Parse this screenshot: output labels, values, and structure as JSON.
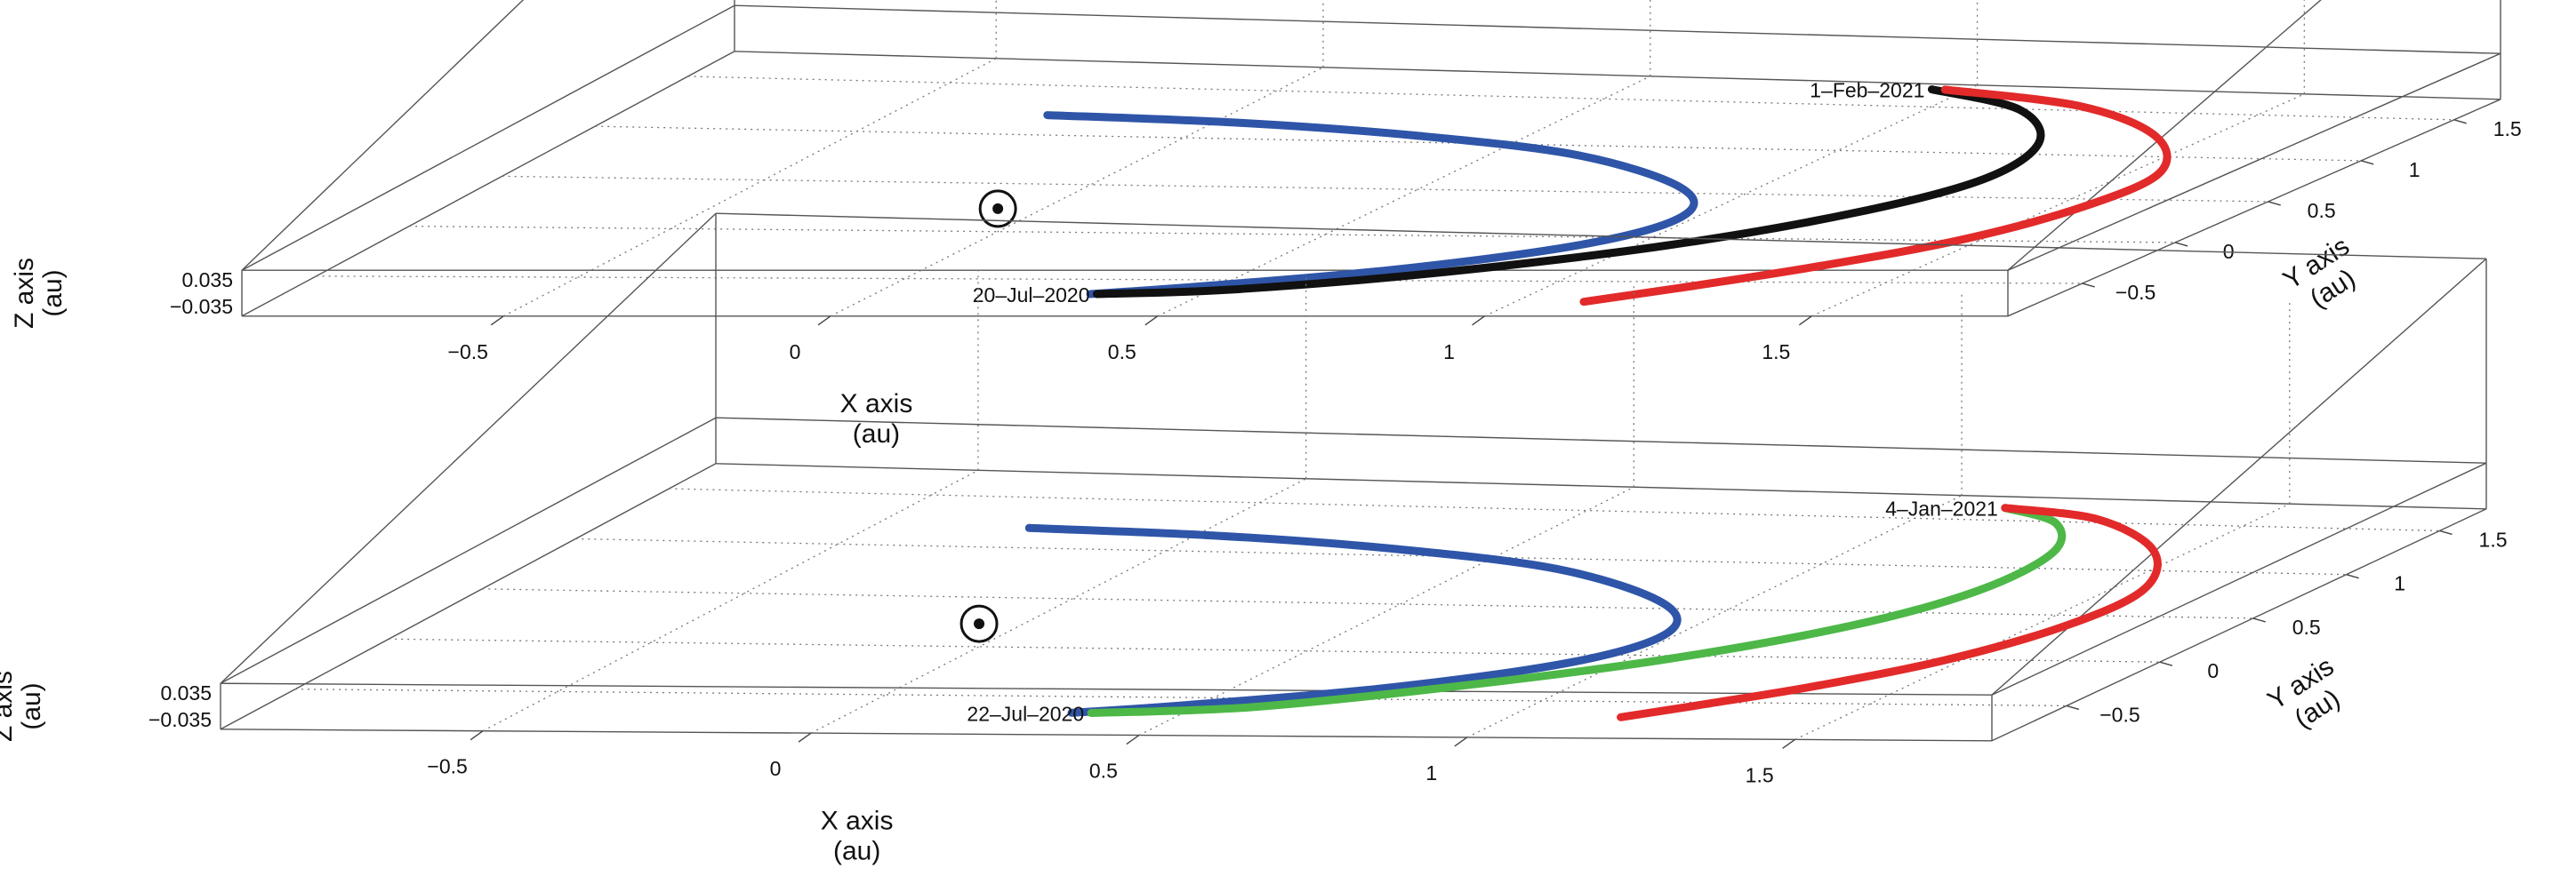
{
  "chart_data": [
    {
      "type": "line3d",
      "xlabel": "X axis\n(au)",
      "ylabel": "Y axis\n(au)",
      "zlabel": "Z axis\n(au)",
      "x_ticks": [
        "-0.5",
        "0",
        "0.5",
        "1",
        "1.5"
      ],
      "y_ticks": [
        "-0.5",
        "0",
        "0.5",
        "1",
        "1.5"
      ],
      "z_ticks": [
        "0.035",
        "-0.035"
      ],
      "xlim": [
        -0.9,
        1.8
      ],
      "ylim": [
        -0.9,
        1.75
      ],
      "zlim": [
        -0.06,
        0.06
      ],
      "grid": true,
      "sun_marker": {
        "x": 0,
        "y": 0,
        "z": 0
      },
      "annotations": [
        {
          "text": "1–Feb–2021",
          "x": 1.03,
          "y": 1.4,
          "z": 0.01
        },
        {
          "text": "20–Jul–2020",
          "x": 0.41,
          "y": -0.91,
          "z": 0.0
        }
      ],
      "series": [
        {
          "color": "#2f55a8",
          "x": [
            -0.2,
            0.1,
            0.4,
            0.7,
            0.95,
            1.05,
            1.0,
            0.8,
            0.55,
            0.4
          ],
          "y": [
            0.97,
            0.93,
            0.83,
            0.65,
            0.32,
            0.0,
            -0.32,
            -0.62,
            -0.82,
            -0.91
          ],
          "z": [
            0,
            0,
            0,
            0,
            0,
            0,
            0,
            0,
            0,
            0
          ]
        },
        {
          "color": "#111111",
          "x": [
            1.03,
            1.22,
            1.35,
            1.38,
            1.3,
            1.12,
            0.85,
            0.6,
            0.41
          ],
          "y": [
            1.4,
            1.2,
            0.85,
            0.45,
            0.05,
            -0.35,
            -0.68,
            -0.86,
            -0.91
          ],
          "z": [
            0.01,
            0.01,
            0.005,
            0,
            0,
            0,
            0,
            0,
            0
          ]
        },
        {
          "color": "#e22a2a",
          "x": [
            1.05,
            1.3,
            1.5,
            1.62,
            1.62,
            1.55,
            1.42,
            1.28,
            1.18
          ],
          "y": [
            1.4,
            1.25,
            0.95,
            0.55,
            0.15,
            -0.25,
            -0.58,
            -0.84,
            -1.0
          ],
          "z": [
            0.01,
            0.01,
            0.005,
            0,
            0,
            0,
            0,
            0,
            0
          ]
        }
      ]
    },
    {
      "type": "line3d",
      "xlabel": "X axis\n(au)",
      "ylabel": "Y axis\n(au)",
      "zlabel": "Z axis\n(au)",
      "x_ticks": [
        "-0.5",
        "0",
        "0.5",
        "1",
        "1.5"
      ],
      "y_ticks": [
        "-0.5",
        "0",
        "0.5",
        "1",
        "1.5"
      ],
      "z_ticks": [
        "0.035",
        "-0.035"
      ],
      "xlim": [
        -0.9,
        1.8
      ],
      "ylim": [
        -0.9,
        1.75
      ],
      "zlim": [
        -0.06,
        0.06
      ],
      "grid": true,
      "sun_marker": {
        "x": 0,
        "y": 0,
        "z": 0
      },
      "annotations": [
        {
          "text": "4–Jan–2021",
          "x": 1.18,
          "y": 1.35,
          "z": 0.01
        },
        {
          "text": "22–Jul–2020",
          "x": 0.43,
          "y": -0.91,
          "z": 0.0
        }
      ],
      "series": [
        {
          "color": "#2f55a8",
          "x": [
            -0.2,
            0.1,
            0.4,
            0.7,
            0.95,
            1.05,
            1.0,
            0.8,
            0.55,
            0.4
          ],
          "y": [
            0.97,
            0.93,
            0.83,
            0.65,
            0.32,
            0.0,
            -0.32,
            -0.62,
            -0.82,
            -0.91
          ],
          "z": [
            0,
            0,
            0,
            0,
            0,
            0,
            0,
            0,
            0,
            0
          ]
        },
        {
          "color": "#4db848",
          "x": [
            1.18,
            1.3,
            1.38,
            1.38,
            1.3,
            1.12,
            0.88,
            0.65,
            0.43
          ],
          "y": [
            1.35,
            1.2,
            0.9,
            0.5,
            0.1,
            -0.3,
            -0.62,
            -0.84,
            -0.91
          ],
          "z": [
            0.01,
            0.01,
            0.005,
            0,
            0,
            0,
            0,
            0,
            0
          ]
        },
        {
          "color": "#e22a2a",
          "x": [
            1.18,
            1.35,
            1.52,
            1.62,
            1.62,
            1.55,
            1.44,
            1.32,
            1.24
          ],
          "y": [
            1.35,
            1.25,
            0.95,
            0.55,
            0.15,
            -0.25,
            -0.55,
            -0.78,
            -0.92
          ],
          "z": [
            0.01,
            0.01,
            0.005,
            0,
            0,
            0,
            0,
            0,
            0
          ]
        }
      ]
    }
  ]
}
